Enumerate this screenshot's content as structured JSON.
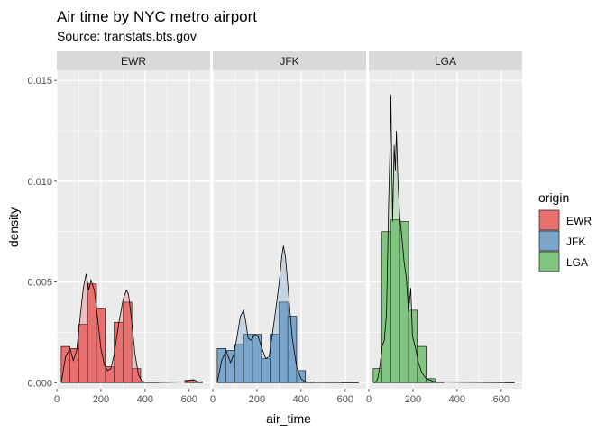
{
  "chart_data": {
    "type": "histogram-density",
    "title": "Air time by NYC metro airport",
    "subtitle": "Source: transtats.bts.gov",
    "xlabel": "air_time",
    "ylabel": "density",
    "xlim": [
      0,
      695
    ],
    "ylim": [
      -0.0003,
      0.0155
    ],
    "x_ticks": [
      0,
      200,
      400,
      600
    ],
    "x_tick_labels": [
      "0",
      "200",
      "400",
      "600"
    ],
    "y_ticks": [
      0,
      0.005,
      0.01,
      0.015
    ],
    "y_tick_labels": [
      "0.000",
      "0.005",
      "0.010",
      "0.015"
    ],
    "grid": true,
    "legend": {
      "title": "origin",
      "placement": "right",
      "items": [
        {
          "label": "EWR",
          "color": "#e8716f"
        },
        {
          "label": "JFK",
          "color": "#7aa6cb"
        },
        {
          "label": "LGA",
          "color": "#82c480"
        }
      ]
    },
    "bin_width": 40,
    "panels": [
      {
        "name": "EWR",
        "color": "#e8716f",
        "bins": [
          {
            "x0": 20,
            "x1": 60,
            "density": 0.0018
          },
          {
            "x0": 60,
            "x1": 100,
            "density": 0.0017
          },
          {
            "x0": 100,
            "x1": 140,
            "density": 0.0029
          },
          {
            "x0": 140,
            "x1": 180,
            "density": 0.0049
          },
          {
            "x0": 180,
            "x1": 220,
            "density": 0.0037
          },
          {
            "x0": 220,
            "x1": 260,
            "density": 0.0008
          },
          {
            "x0": 260,
            "x1": 300,
            "density": 0.003
          },
          {
            "x0": 300,
            "x1": 340,
            "density": 0.004
          },
          {
            "x0": 340,
            "x1": 380,
            "density": 0.0007
          },
          {
            "x0": 380,
            "x1": 420,
            "density": 3e-05
          },
          {
            "x0": 420,
            "x1": 460,
            "density": 3e-05
          },
          {
            "x0": 580,
            "x1": 620,
            "density": 0.00012
          },
          {
            "x0": 620,
            "x1": 660,
            "density": 5e-05
          }
        ],
        "density_curve": [
          [
            20,
            0
          ],
          [
            40,
            0.0013
          ],
          [
            60,
            0.0017
          ],
          [
            75,
            0.0011
          ],
          [
            90,
            0.0016
          ],
          [
            105,
            0.0032
          ],
          [
            120,
            0.0047
          ],
          [
            133,
            0.0054
          ],
          [
            145,
            0.0046
          ],
          [
            155,
            0.0051
          ],
          [
            170,
            0.0046
          ],
          [
            185,
            0.0032
          ],
          [
            200,
            0.0017
          ],
          [
            215,
            0.0009
          ],
          [
            230,
            0.0006
          ],
          [
            245,
            0.0007
          ],
          [
            260,
            0.0014
          ],
          [
            280,
            0.0029
          ],
          [
            300,
            0.0041
          ],
          [
            315,
            0.0046
          ],
          [
            325,
            0.0044
          ],
          [
            340,
            0.003
          ],
          [
            355,
            0.0014
          ],
          [
            370,
            0.0004
          ],
          [
            385,
            0.0001
          ],
          [
            400,
            3e-05
          ],
          [
            450,
            1e-05
          ],
          [
            580,
            3e-05
          ],
          [
            600,
            0.00012
          ],
          [
            620,
            0.00015
          ],
          [
            640,
            5e-05
          ],
          [
            660,
            0
          ]
        ]
      },
      {
        "name": "JFK",
        "color": "#7aa6cb",
        "bins": [
          {
            "x0": 20,
            "x1": 60,
            "density": 0.0017
          },
          {
            "x0": 60,
            "x1": 100,
            "density": 0.0016
          },
          {
            "x0": 100,
            "x1": 140,
            "density": 0.0019
          },
          {
            "x0": 140,
            "x1": 180,
            "density": 0.0024
          },
          {
            "x0": 180,
            "x1": 220,
            "density": 0.0024
          },
          {
            "x0": 220,
            "x1": 260,
            "density": 0.0012
          },
          {
            "x0": 260,
            "x1": 300,
            "density": 0.0024
          },
          {
            "x0": 300,
            "x1": 340,
            "density": 0.004
          },
          {
            "x0": 340,
            "x1": 380,
            "density": 0.0033
          },
          {
            "x0": 380,
            "x1": 420,
            "density": 0.0006
          },
          {
            "x0": 420,
            "x1": 460,
            "density": 3e-05
          },
          {
            "x0": 580,
            "x1": 620,
            "density": 2e-05
          },
          {
            "x0": 620,
            "x1": 660,
            "density": 2e-05
          }
        ],
        "density_curve": [
          [
            20,
            0
          ],
          [
            40,
            0.0011
          ],
          [
            60,
            0.0016
          ],
          [
            80,
            0.001
          ],
          [
            95,
            0.0014
          ],
          [
            110,
            0.0023
          ],
          [
            125,
            0.0033
          ],
          [
            140,
            0.0036
          ],
          [
            150,
            0.003
          ],
          [
            160,
            0.0022
          ],
          [
            175,
            0.0021
          ],
          [
            190,
            0.0024
          ],
          [
            205,
            0.0023
          ],
          [
            220,
            0.0018
          ],
          [
            240,
            0.0012
          ],
          [
            255,
            0.0013
          ],
          [
            270,
            0.0024
          ],
          [
            285,
            0.0036
          ],
          [
            300,
            0.0049
          ],
          [
            312,
            0.0062
          ],
          [
            320,
            0.0068
          ],
          [
            330,
            0.0062
          ],
          [
            345,
            0.0042
          ],
          [
            360,
            0.0022
          ],
          [
            380,
            0.0008
          ],
          [
            400,
            0.0002
          ],
          [
            420,
            5e-05
          ],
          [
            460,
            1e-05
          ],
          [
            660,
            0
          ]
        ]
      },
      {
        "name": "LGA",
        "color": "#82c480",
        "bins": [
          {
            "x0": 20,
            "x1": 60,
            "density": 0.0007
          },
          {
            "x0": 60,
            "x1": 100,
            "density": 0.0075
          },
          {
            "x0": 100,
            "x1": 140,
            "density": 0.0081
          },
          {
            "x0": 140,
            "x1": 180,
            "density": 0.008
          },
          {
            "x0": 180,
            "x1": 220,
            "density": 0.0036
          },
          {
            "x0": 220,
            "x1": 260,
            "density": 0.0018
          },
          {
            "x0": 260,
            "x1": 300,
            "density": 0.0002
          },
          {
            "x0": 300,
            "x1": 340,
            "density": 2e-05
          },
          {
            "x0": 620,
            "x1": 660,
            "density": 2e-05
          }
        ],
        "density_curve": [
          [
            30,
            0
          ],
          [
            40,
            0.0002
          ],
          [
            50,
            0.0008
          ],
          [
            60,
            0.0018
          ],
          [
            70,
            0.0021
          ],
          [
            80,
            0.0034
          ],
          [
            90,
            0.009
          ],
          [
            97,
            0.012
          ],
          [
            100,
            0.0143
          ],
          [
            103,
            0.0117
          ],
          [
            108,
            0.008
          ],
          [
            115,
            0.0118
          ],
          [
            120,
            0.0105
          ],
          [
            125,
            0.0125
          ],
          [
            132,
            0.01
          ],
          [
            140,
            0.0083
          ],
          [
            150,
            0.0072
          ],
          [
            160,
            0.006
          ],
          [
            170,
            0.0052
          ],
          [
            180,
            0.0035
          ],
          [
            190,
            0.0047
          ],
          [
            198,
            0.0023
          ],
          [
            210,
            0.0018
          ],
          [
            225,
            0.001
          ],
          [
            240,
            0.0005
          ],
          [
            260,
            0.0002
          ],
          [
            300,
            3e-05
          ],
          [
            660,
            0
          ]
        ]
      }
    ]
  }
}
